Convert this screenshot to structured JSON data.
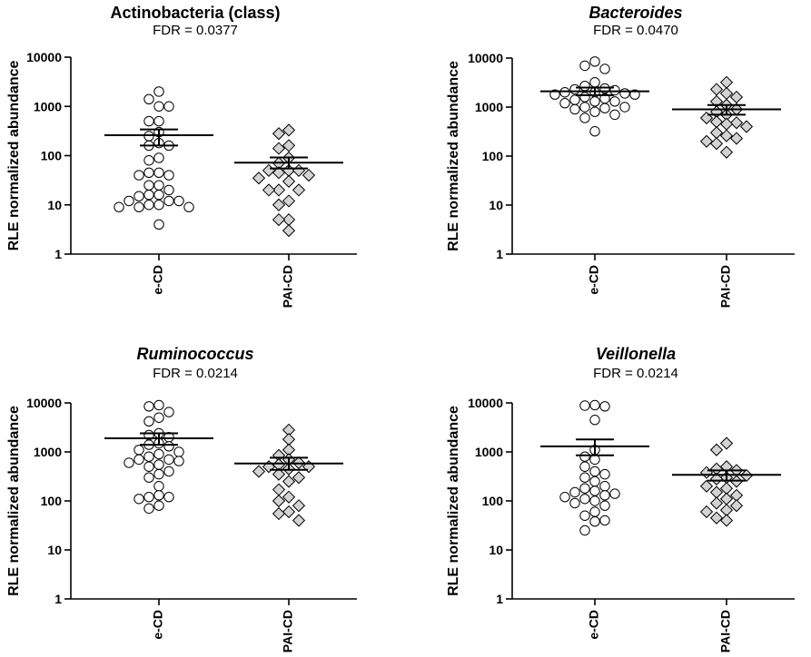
{
  "chart_data": [
    {
      "type": "scatter",
      "subtype": "dot-plot-mean-sem",
      "title": "Actinobacteria (class)",
      "title_italic": false,
      "subtitle": "FDR = 0.0377",
      "ylabel": "RLE normalized abundance",
      "yscale": "log",
      "ylim": [
        1,
        10000
      ],
      "yticks": [
        "1",
        "10",
        "100",
        "1000",
        "10000"
      ],
      "categories": [
        "e-CD",
        "PAI-CD"
      ],
      "series": [
        {
          "name": "e-CD",
          "marker": "circle",
          "mean": 260,
          "sem_low": 160,
          "sem_high": 340,
          "values": [
            2000,
            1400,
            1000,
            1000,
            500,
            500,
            300,
            250,
            180,
            160,
            160,
            90,
            80,
            45,
            45,
            40,
            40,
            25,
            25,
            20,
            16,
            16,
            15,
            12,
            12,
            12,
            10,
            10,
            9,
            9,
            9,
            4
          ]
        },
        {
          "name": "PAI-CD",
          "marker": "diamond",
          "mean": 72,
          "sem_low": 55,
          "sem_high": 92,
          "values": [
            330,
            280,
            160,
            140,
            90,
            70,
            50,
            50,
            50,
            45,
            40,
            35,
            30,
            20,
            20,
            20,
            12,
            10,
            5,
            5,
            3
          ]
        }
      ]
    },
    {
      "type": "scatter",
      "subtype": "dot-plot-mean-sem",
      "title": "Bacteroides",
      "title_italic": true,
      "subtitle": "FDR = 0.0470",
      "ylabel": "RLE normalized abundance",
      "yscale": "log",
      "ylim": [
        1,
        10000
      ],
      "yticks": [
        "1",
        "10",
        "100",
        "1000",
        "10000"
      ],
      "categories": [
        "e-CD",
        "PAI-CD"
      ],
      "series": [
        {
          "name": "e-CD",
          "marker": "circle",
          "mean": 2100,
          "sem_low": 1750,
          "sem_high": 2500,
          "values": [
            8500,
            7000,
            6000,
            3200,
            2700,
            2400,
            2300,
            2200,
            2000,
            2000,
            1900,
            1800,
            1800,
            1600,
            1500,
            1400,
            1300,
            1300,
            1200,
            1000,
            1000,
            950,
            900,
            800,
            700,
            600,
            320
          ]
        },
        {
          "name": "PAI-CD",
          "marker": "diamond",
          "mean": 900,
          "sem_low": 700,
          "sem_high": 1100,
          "values": [
            3200,
            2300,
            1900,
            1600,
            1300,
            1100,
            900,
            800,
            700,
            600,
            500,
            480,
            450,
            400,
            300,
            260,
            230,
            200,
            180,
            120
          ]
        }
      ]
    },
    {
      "type": "scatter",
      "subtype": "dot-plot-mean-sem",
      "title": "Ruminococcus",
      "title_italic": true,
      "subtitle": "FDR = 0.0214",
      "ylabel": "RLE normalized abundance",
      "yscale": "log",
      "ylim": [
        1,
        10000
      ],
      "yticks": [
        "1",
        "10",
        "100",
        "1000",
        "10000"
      ],
      "categories": [
        "e-CD",
        "PAI-CD"
      ],
      "series": [
        {
          "name": "e-CD",
          "marker": "circle",
          "mean": 1900,
          "sem_low": 1400,
          "sem_high": 2400,
          "values": [
            9000,
            8500,
            6500,
            5000,
            4200,
            2400,
            2200,
            2000,
            1500,
            1400,
            1300,
            1100,
            1000,
            900,
            800,
            700,
            700,
            650,
            600,
            550,
            500,
            400,
            350,
            300,
            200,
            130,
            120,
            120,
            110,
            80,
            70
          ]
        },
        {
          "name": "PAI-CD",
          "marker": "diamond",
          "mean": 580,
          "sem_low": 430,
          "sem_high": 760,
          "values": [
            2800,
            1800,
            1100,
            850,
            700,
            600,
            550,
            500,
            500,
            450,
            400,
            350,
            300,
            250,
            170,
            120,
            100,
            80,
            60,
            55,
            40
          ]
        }
      ]
    },
    {
      "type": "scatter",
      "subtype": "dot-plot-mean-sem",
      "title": "Veillonella",
      "title_italic": true,
      "subtitle": "FDR = 0.0214",
      "ylabel": "RLE normalized abundance",
      "yscale": "log",
      "ylim": [
        1,
        10000
      ],
      "yticks": [
        "1",
        "10",
        "100",
        "1000",
        "10000"
      ],
      "categories": [
        "e-CD",
        "PAI-CD"
      ],
      "series": [
        {
          "name": "e-CD",
          "marker": "circle",
          "mean": 1300,
          "sem_low": 850,
          "sem_high": 1800,
          "values": [
            9000,
            8800,
            8500,
            4500,
            1100,
            800,
            700,
            500,
            400,
            350,
            300,
            250,
            200,
            180,
            160,
            150,
            140,
            130,
            120,
            110,
            100,
            90,
            80,
            60,
            50,
            40,
            38,
            25
          ]
        },
        {
          "name": "PAI-CD",
          "marker": "diamond",
          "mean": 340,
          "sem_low": 260,
          "sem_high": 420,
          "values": [
            1500,
            1100,
            500,
            450,
            420,
            380,
            330,
            300,
            280,
            250,
            200,
            180,
            150,
            130,
            110,
            90,
            80,
            65,
            60,
            45,
            40
          ]
        }
      ]
    }
  ]
}
